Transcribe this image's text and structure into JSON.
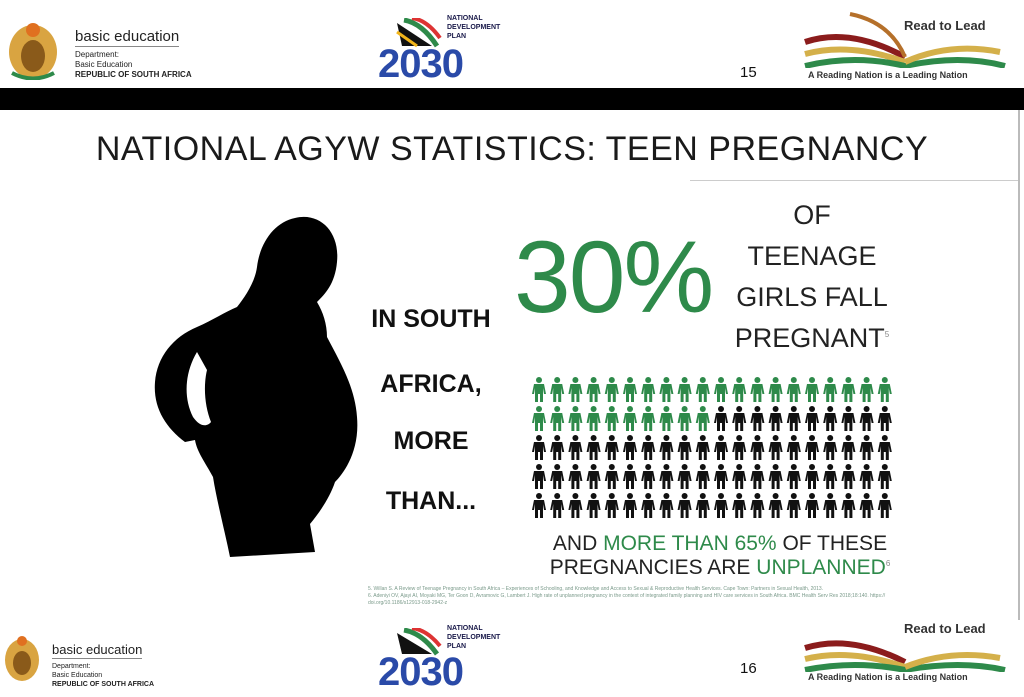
{
  "header_top": {
    "dept_name": "basic education",
    "dept_line1": "Department:",
    "dept_line2": "Basic Education",
    "dept_line3": "REPUBLIC OF SOUTH AFRICA",
    "ndp_small": "NATIONAL DEVELOPMENT PLAN",
    "ndp_year": "2030",
    "r2l_title": "Read to Lead",
    "r2l_tagline": "A Reading Nation is a Leading Nation",
    "page_number": "15"
  },
  "header_bottom": {
    "dept_name": "basic education",
    "dept_line1": "Department:",
    "dept_line2": "Basic Education",
    "dept_line3": "REPUBLIC OF SOUTH AFRICA",
    "ndp_small": "NATIONAL DEVELOPMENT PLAN",
    "ndp_year": "2030",
    "r2l_title": "Read to Lead",
    "r2l_tagline": "A Reading Nation is a Leading Nation",
    "page_number": "16"
  },
  "slide": {
    "title": "NATIONAL AGYW STATISTICS: TEEN PREGNANCY",
    "left_lines": [
      "IN SOUTH",
      "AFRICA,",
      "MORE",
      "THAN..."
    ],
    "big_stat": "30%",
    "right_lines": [
      "OF",
      "TEENAGE",
      "GIRLS FALL"
    ],
    "pregnant": "PREGNANT",
    "pregnant_ref": "5",
    "bottom_and": "AND ",
    "bottom_green": "MORE THAN 65%",
    "bottom_rest": " OF THESE",
    "bottom_line2": "PREGNANCIES ARE ",
    "bottom_unplanned": "UNPLANNED",
    "bottom_ref": "6",
    "pictogram": {
      "total": 100,
      "highlighted": 30,
      "columns": 20,
      "highlight_color": "#2e8a4a",
      "base_color": "#111111"
    },
    "footnotes": [
      "5. Willan S. A Review of Teenage Pregnancy in South Africa – Experiences of Schooling, and Knowledge and Access to Sexual & Reproductive Health Services. Cape Town: Partners in Sexual Health, 2013.",
      "6. Adeniyi OV, Ajayi AI, Moyaki MG, Ter Goon D, Avramovic G, Lambert J. High rate of unplanned pregnancy in the context of integrated family planning and HIV care services in South Africa. BMC Health Serv Res 2018;18:140. https:// doi.org/10.1186/s12913-018-2942-z"
    ]
  },
  "colors": {
    "green": "#2e8a4a",
    "ndp_blue": "#2a4aa8"
  }
}
